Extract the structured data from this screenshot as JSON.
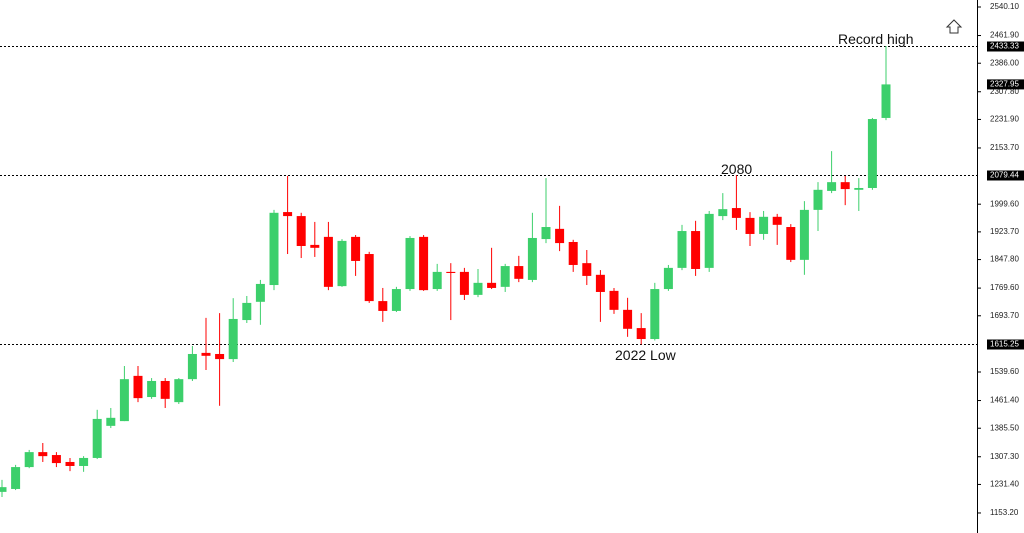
{
  "chart_data": {
    "type": "candlestick",
    "up_color": "#3ccf6b",
    "down_color": "#ff0000",
    "ylim": [
      1098.3,
      2559.3
    ],
    "yticks": [
      {
        "value": 2540.1,
        "label": "2540.10"
      },
      {
        "value": 2461.9,
        "label": "2461.90"
      },
      {
        "value": 2386,
        "label": "2386.00"
      },
      {
        "value": 2307.8,
        "label": "2307.80"
      },
      {
        "value": 2231.9,
        "label": "2231.90"
      },
      {
        "value": 2153.7,
        "label": "2153.70"
      },
      {
        "value": 1999.6,
        "label": "1999.60"
      },
      {
        "value": 1923.7,
        "label": "1923.70"
      },
      {
        "value": 1847.8,
        "label": "1847.80"
      },
      {
        "value": 1769.6,
        "label": "1769.60"
      },
      {
        "value": 1693.7,
        "label": "1693.70"
      },
      {
        "value": 1539.6,
        "label": "1539.60"
      },
      {
        "value": 1461.4,
        "label": "1461.40"
      },
      {
        "value": 1385.5,
        "label": "1385.50"
      },
      {
        "value": 1307.3,
        "label": "1307.30"
      },
      {
        "value": 1231.4,
        "label": "1231.40"
      },
      {
        "value": 1153.2,
        "label": "1153.20"
      }
    ],
    "levels": [
      2433.33,
      2079.44,
      1615.25
    ],
    "last_price": 2327.95,
    "annotations": [
      "Record high",
      "2080",
      "2022 Low"
    ],
    "open": [
      1211,
      1219,
      1279,
      1320,
      1312,
      1293,
      1282,
      1304,
      1392,
      1405,
      1529,
      1471,
      1515,
      1457,
      1520,
      1592,
      1589,
      1575,
      1682,
      1732,
      1778,
      1978,
      1967,
      1888,
      1910,
      1775,
      1910,
      1863,
      1734,
      1707,
      1767,
      1910,
      1767,
      1814,
      1814,
      1751,
      1784,
      1773,
      1830,
      1792,
      1904,
      1932,
      1896,
      1838,
      1806,
      1762,
      1710,
      1660,
      1630,
      1767,
      1825,
      1926,
      1825,
      1967,
      1989,
      1962,
      1918,
      1965,
      1937,
      1847,
      1984,
      2036,
      2060,
      2039,
      2044,
      2236
    ],
    "high": [
      1244,
      1285,
      1326,
      1345,
      1320,
      1304,
      1309,
      1436,
      1441,
      1556,
      1556,
      1523,
      1523,
      1523,
      1611,
      1688,
      1701,
      1742,
      1748,
      1792,
      1984,
      2077,
      1976,
      1951,
      1951,
      1904,
      1915,
      1869,
      1770,
      1773,
      1912,
      1915,
      1836,
      1838,
      1825,
      1822,
      1880,
      1836,
      1858,
      1976,
      2071,
      1995,
      1902,
      1874,
      1819,
      1770,
      1743,
      1701,
      1784,
      1833,
      1943,
      1954,
      1981,
      2030,
      2079,
      1978,
      1981,
      1973,
      1945,
      2008,
      2060,
      2145,
      2077,
      2071,
      2236,
      2433.33
    ],
    "low": [
      1197,
      1216,
      1276,
      1293,
      1279,
      1268,
      1266,
      1301,
      1386,
      1405,
      1457,
      1466,
      1441,
      1452,
      1515,
      1545,
      1447,
      1567,
      1674,
      1669,
      1764,
      1863,
      1852,
      1855,
      1764,
      1773,
      1803,
      1729,
      1677,
      1704,
      1762,
      1762,
      1762,
      1682,
      1737,
      1745,
      1767,
      1759,
      1786,
      1786,
      1893,
      1871,
      1814,
      1778,
      1677,
      1699,
      1636,
      1615.25,
      1626,
      1762,
      1819,
      1803,
      1814,
      1956,
      1929,
      1885,
      1902,
      1888,
      1841,
      1806,
      1926,
      2030,
      1997,
      1981,
      2039,
      2230
    ],
    "close": [
      1224,
      1279,
      1320,
      1309,
      1290,
      1282,
      1304,
      1411,
      1414,
      1520,
      1468,
      1515,
      1466,
      1520,
      1589,
      1584,
      1575,
      1685,
      1729,
      1781,
      1976,
      1967,
      1885,
      1880,
      1773,
      1899,
      1844,
      1734,
      1707,
      1767,
      1907,
      1764,
      1814,
      1811,
      1751,
      1784,
      1770,
      1830,
      1795,
      1907,
      1937,
      1893,
      1833,
      1803,
      1759,
      1710,
      1658,
      1630,
      1767,
      1825,
      1926,
      1822,
      1973,
      1986,
      1962,
      1918,
      1965,
      1943,
      1847,
      1984,
      2039,
      2060,
      2041,
      2044,
      2233,
      2327.95
    ]
  }
}
